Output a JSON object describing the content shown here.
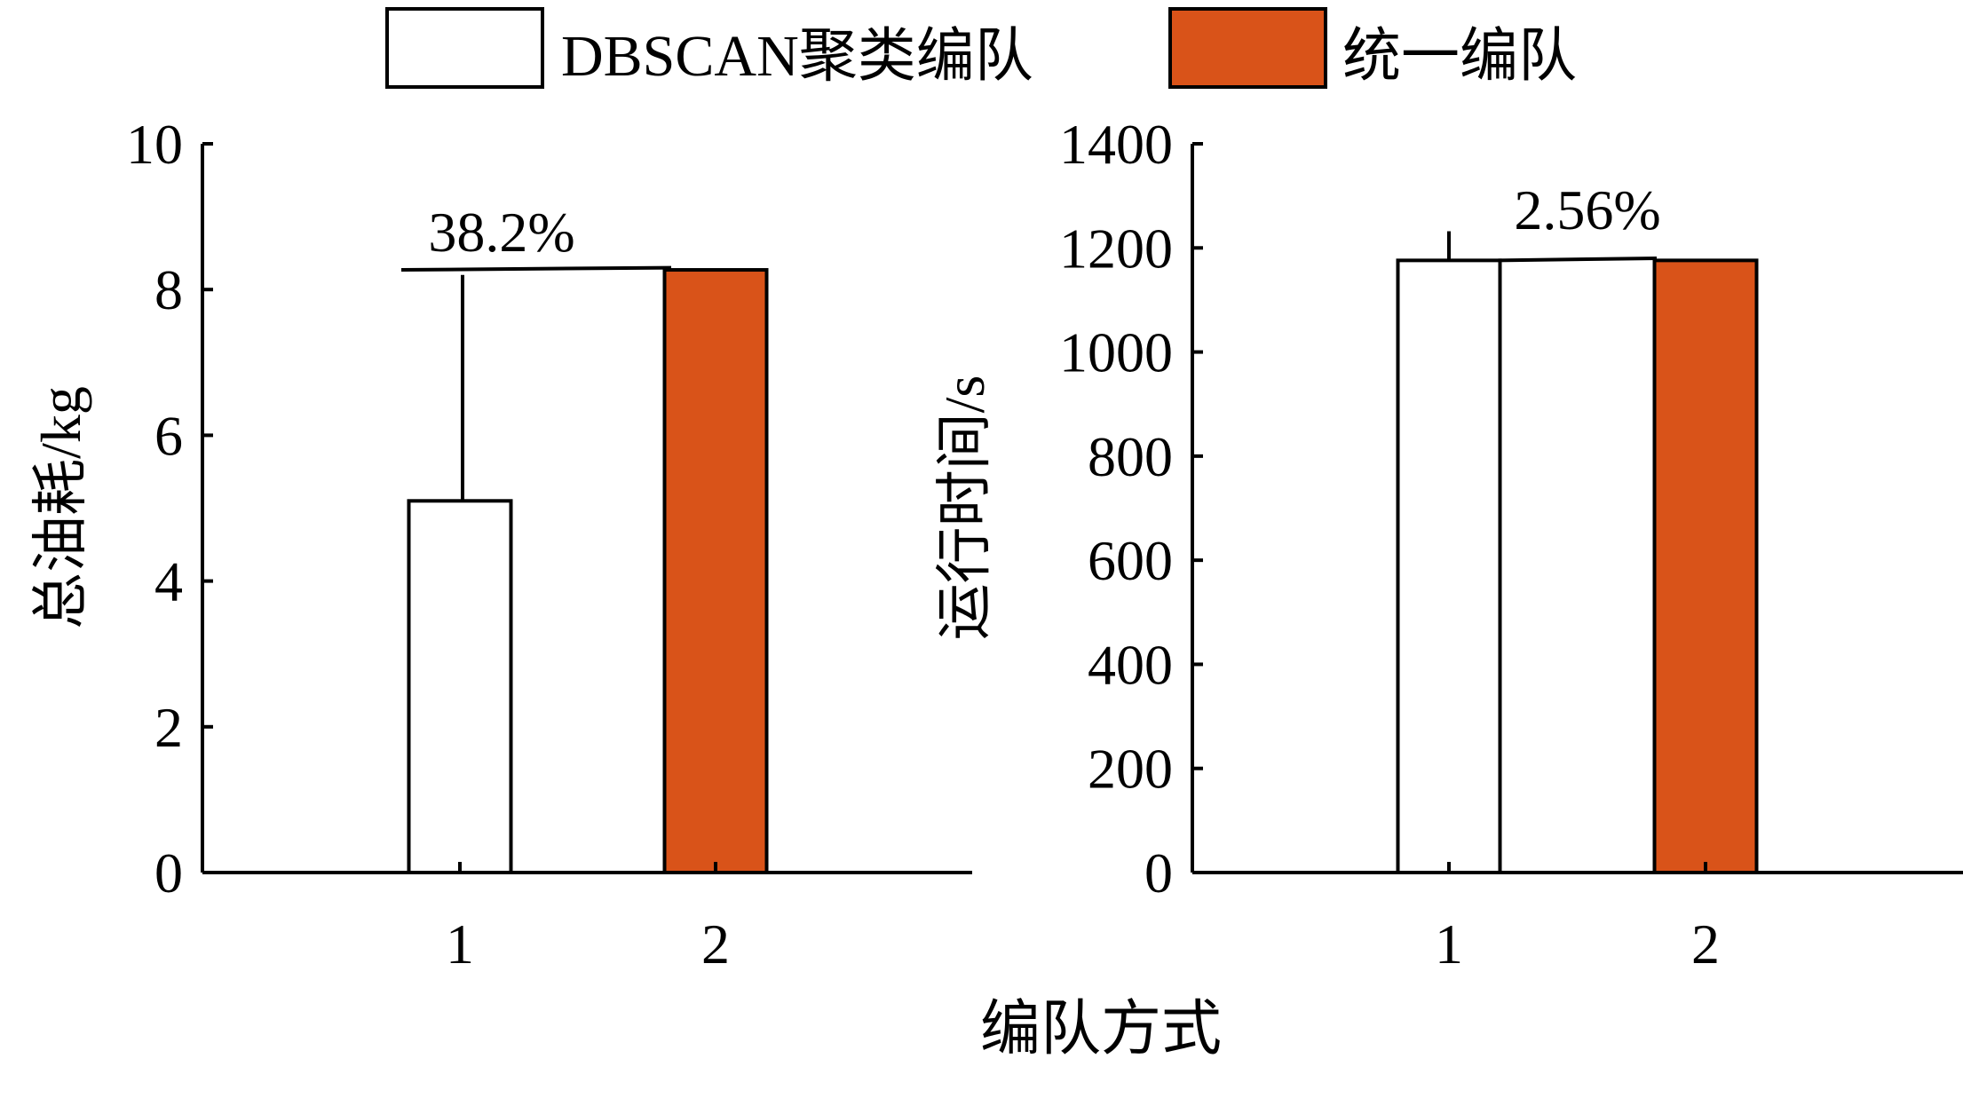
{
  "legend": {
    "items": [
      {
        "label": "DBSCAN聚类编队",
        "color": "#ffffff"
      },
      {
        "label": "统一编队",
        "color": "#d95319"
      }
    ]
  },
  "xlabel": "编队方式",
  "chart_data": [
    {
      "type": "bar",
      "categories": [
        "1",
        "2"
      ],
      "values": [
        5.1,
        8.27
      ],
      "error_bars": [
        {
          "category": "1",
          "low": 5.1,
          "high": 8.2
        }
      ],
      "colors": [
        "#ffffff",
        "#d95319"
      ],
      "ylabel": "总油耗/kg",
      "ylim": [
        0,
        10
      ],
      "yticks": [
        "0",
        "2",
        "4",
        "6",
        "8",
        "10"
      ],
      "annotation": {
        "text": "38.2%",
        "from": 8.27,
        "to": 8.3
      }
    },
    {
      "type": "bar",
      "categories": [
        "1",
        "2"
      ],
      "values": [
        1176,
        1176
      ],
      "error_bars": [
        {
          "category": "1",
          "low": 1176,
          "high": 1232
        }
      ],
      "colors": [
        "#ffffff",
        "#d95319"
      ],
      "ylabel": "运行时间/s",
      "ylim": [
        0,
        1400
      ],
      "yticks": [
        "0",
        "200",
        "400",
        "600",
        "800",
        "1000",
        "1200",
        "1400"
      ],
      "annotation": {
        "text": "2.56%",
        "from": 1176,
        "to": 1180
      }
    }
  ]
}
